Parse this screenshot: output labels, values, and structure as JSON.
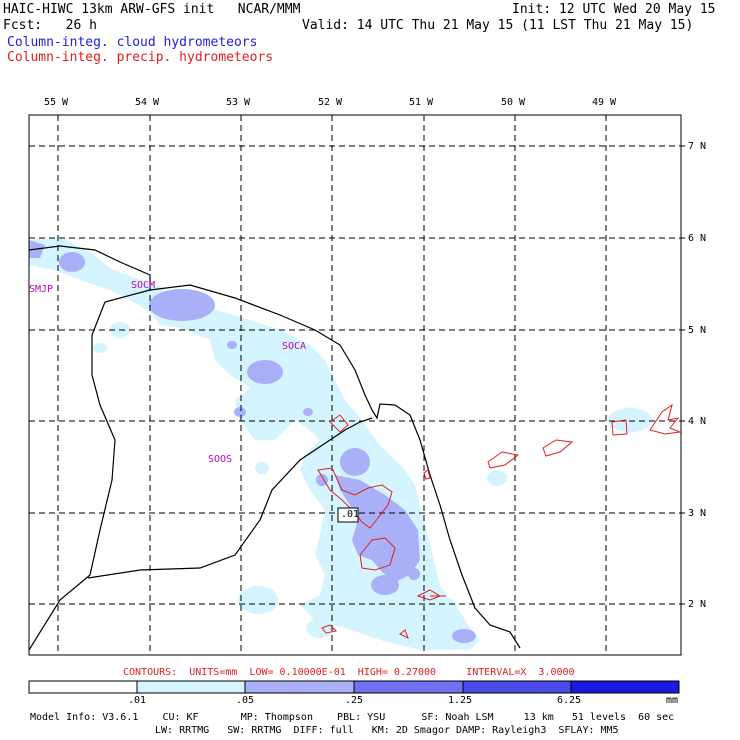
{
  "header": {
    "title_left": "HAIC-HIWC 13km ARW-GFS init   NCAR/MMM",
    "init": "Init: 12 UTC Wed 20 May 15",
    "fcst": "Fcst:   26 h",
    "valid": "Valid: 14 UTC Thu 21 May 15 (11 LST Thu 21 May 15)",
    "legend_cloud": "Column-integ. cloud hydrometeors",
    "legend_precip": "Column-integ. precip. hydrometeors"
  },
  "map": {
    "longitude_labels": [
      "55 W",
      "54 W",
      "53 W",
      "52 W",
      "51 W",
      "50 W",
      "49 W"
    ],
    "latitude_labels": [
      "7 N",
      "6 N",
      "5 N",
      "4 N",
      "3 N",
      "2 N"
    ],
    "stations": [
      "SMJP",
      "SOCM",
      "SOCA",
      "SOOS"
    ],
    "contour_label": ".01"
  },
  "contours_info": "CONTOURS:  UNITS=mm  LOW= 0.10000E-01  HIGH= 0.27000     INTERVAL=X  3.0000",
  "colorbar": {
    "ticks": [
      ".01",
      ".05",
      ".25",
      "1.25",
      "6.25",
      "mm"
    ],
    "colors": [
      "#ffffff",
      "#d4f5ff",
      "#aab0f8",
      "#7070f0",
      "#4a4ae8",
      "#1a1ae0"
    ]
  },
  "model_info": {
    "line1": "Model Info: V3.6.1    CU: KF       MP: Thompson    PBL: YSU      SF: Noah LSM     13 km   51 levels  60 sec",
    "line2": "LW: RRTMG   SW: RRTMG  DIFF: full   KM: 2D Smagor DAMP: Rayleigh3  SFLAY: MM5"
  }
}
